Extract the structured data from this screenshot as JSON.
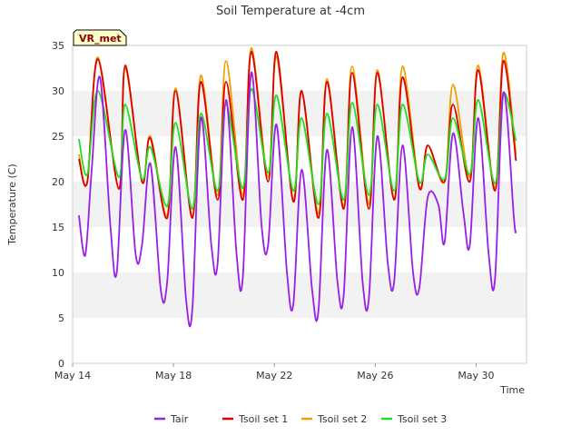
{
  "chart_data": {
    "type": "line",
    "title": "Soil Temperature at -4cm",
    "xlabel": "Time",
    "ylabel": "Temperature (C)",
    "badge": "VR_met",
    "ylim": [
      0,
      35
    ],
    "y_ticks": [
      0,
      5,
      10,
      15,
      20,
      25,
      30,
      35
    ],
    "xlim": [
      "2024-05-14",
      "2024-06-01"
    ],
    "x_ticks": [
      {
        "date": "2024-05-14",
        "label": "May 14"
      },
      {
        "date": "2024-05-18",
        "label": "May 18"
      },
      {
        "date": "2024-05-22",
        "label": "May 22"
      },
      {
        "date": "2024-05-26",
        "label": "May 26"
      },
      {
        "date": "2024-05-30",
        "label": "May 30"
      }
    ],
    "grid": "horizontal bands",
    "legend_position": "bottom",
    "colors": {
      "Tair": "#9a1ee8",
      "Tsoil set 1": "#dd0000",
      "Tsoil set 2": "#f0a000",
      "Tsoil set 3": "#22dd22",
      "band": "#f2f2f2",
      "badge_bg": "#ffffcc"
    },
    "series": [
      {
        "name": "Tair",
        "points": [
          [
            "2024-05-14 06:00",
            16.3
          ],
          [
            "2024-05-14 12:00",
            11.9
          ],
          [
            "2024-05-14 18:00",
            21.0
          ],
          [
            "2024-05-15 02:00",
            31.5
          ],
          [
            "2024-05-15 12:00",
            15.0
          ],
          [
            "2024-05-15 18:00",
            10.0
          ],
          [
            "2024-05-16 02:00",
            25.7
          ],
          [
            "2024-05-16 12:00",
            12.0
          ],
          [
            "2024-05-16 18:00",
            13.0
          ],
          [
            "2024-05-17 02:00",
            22.0
          ],
          [
            "2024-05-17 12:00",
            8.0
          ],
          [
            "2024-05-17 18:00",
            9.0
          ],
          [
            "2024-05-18 02:00",
            23.8
          ],
          [
            "2024-05-18 12:00",
            7.0
          ],
          [
            "2024-05-18 18:00",
            6.0
          ],
          [
            "2024-05-19 02:00",
            27.0
          ],
          [
            "2024-05-19 12:00",
            13.0
          ],
          [
            "2024-05-19 18:00",
            11.0
          ],
          [
            "2024-05-20 02:00",
            29.0
          ],
          [
            "2024-05-20 12:00",
            12.0
          ],
          [
            "2024-05-20 18:00",
            9.5
          ],
          [
            "2024-05-21 02:00",
            32.0
          ],
          [
            "2024-05-21 12:00",
            15.0
          ],
          [
            "2024-05-21 18:00",
            13.0
          ],
          [
            "2024-05-22 02:00",
            26.3
          ],
          [
            "2024-05-22 12:00",
            10.0
          ],
          [
            "2024-05-22 18:00",
            6.5
          ],
          [
            "2024-05-23 02:00",
            21.3
          ],
          [
            "2024-05-23 12:00",
            8.0
          ],
          [
            "2024-05-23 18:00",
            5.8
          ],
          [
            "2024-05-24 02:00",
            23.5
          ],
          [
            "2024-05-24 12:00",
            9.0
          ],
          [
            "2024-05-24 18:00",
            7.5
          ],
          [
            "2024-05-25 02:00",
            26.0
          ],
          [
            "2024-05-25 12:00",
            9.0
          ],
          [
            "2024-05-25 18:00",
            7.2
          ],
          [
            "2024-05-26 02:00",
            25.0
          ],
          [
            "2024-05-26 12:00",
            11.0
          ],
          [
            "2024-05-26 18:00",
            9.0
          ],
          [
            "2024-05-27 02:00",
            24.0
          ],
          [
            "2024-05-27 12:00",
            10.0
          ],
          [
            "2024-05-27 18:00",
            8.3
          ],
          [
            "2024-05-28 02:00",
            18.3
          ],
          [
            "2024-05-28 12:00",
            17.5
          ],
          [
            "2024-05-28 18:00",
            13.3
          ],
          [
            "2024-05-29 02:00",
            25.3
          ],
          [
            "2024-05-29 12:00",
            16.5
          ],
          [
            "2024-05-29 18:00",
            13.0
          ],
          [
            "2024-05-30 02:00",
            27.0
          ],
          [
            "2024-05-30 12:00",
            12.0
          ],
          [
            "2024-05-30 18:00",
            9.3
          ],
          [
            "2024-05-31 02:00",
            29.8
          ],
          [
            "2024-05-31 12:00",
            16.0
          ],
          [
            "2024-05-31 14:00",
            14.5
          ]
        ]
      },
      {
        "name": "Tsoil set 1",
        "points": [
          [
            "2024-05-14 06:00",
            22.5
          ],
          [
            "2024-05-14 14:00",
            20.0
          ],
          [
            "2024-05-15 00:00",
            33.5
          ],
          [
            "2024-05-15 20:00",
            19.2
          ],
          [
            "2024-05-16 02:00",
            32.8
          ],
          [
            "2024-05-16 18:00",
            20.0
          ],
          [
            "2024-05-17 02:00",
            24.8
          ],
          [
            "2024-05-17 18:00",
            16.0
          ],
          [
            "2024-05-18 02:00",
            30.0
          ],
          [
            "2024-05-18 18:00",
            16.0
          ],
          [
            "2024-05-19 02:00",
            31.0
          ],
          [
            "2024-05-19 18:00",
            18.0
          ],
          [
            "2024-05-20 02:00",
            31.0
          ],
          [
            "2024-05-20 18:00",
            18.0
          ],
          [
            "2024-05-21 02:00",
            34.3
          ],
          [
            "2024-05-21 18:00",
            20.0
          ],
          [
            "2024-05-22 02:00",
            34.3
          ],
          [
            "2024-05-22 18:00",
            17.8
          ],
          [
            "2024-05-23 02:00",
            30.0
          ],
          [
            "2024-05-23 18:00",
            16.0
          ],
          [
            "2024-05-24 02:00",
            31.0
          ],
          [
            "2024-05-24 18:00",
            17.0
          ],
          [
            "2024-05-25 02:00",
            32.0
          ],
          [
            "2024-05-25 18:00",
            17.0
          ],
          [
            "2024-05-26 02:00",
            32.0
          ],
          [
            "2024-05-26 18:00",
            18.0
          ],
          [
            "2024-05-27 02:00",
            31.5
          ],
          [
            "2024-05-27 18:00",
            19.3
          ],
          [
            "2024-05-28 02:00",
            24.0
          ],
          [
            "2024-05-28 18:00",
            20.0
          ],
          [
            "2024-05-29 02:00",
            28.5
          ],
          [
            "2024-05-29 18:00",
            20.0
          ],
          [
            "2024-05-30 02:00",
            32.3
          ],
          [
            "2024-05-30 18:00",
            19.0
          ],
          [
            "2024-05-31 02:00",
            33.3
          ],
          [
            "2024-05-31 14:00",
            22.3
          ]
        ]
      },
      {
        "name": "Tsoil set 2",
        "points": [
          [
            "2024-05-14 06:00",
            23.0
          ],
          [
            "2024-05-14 14:00",
            20.0
          ],
          [
            "2024-05-15 00:00",
            33.7
          ],
          [
            "2024-05-15 20:00",
            19.2
          ],
          [
            "2024-05-16 02:00",
            32.5
          ],
          [
            "2024-05-16 18:00",
            20.0
          ],
          [
            "2024-05-17 02:00",
            25.0
          ],
          [
            "2024-05-17 18:00",
            16.3
          ],
          [
            "2024-05-18 02:00",
            30.3
          ],
          [
            "2024-05-18 18:00",
            16.2
          ],
          [
            "2024-05-19 02:00",
            31.7
          ],
          [
            "2024-05-19 18:00",
            18.5
          ],
          [
            "2024-05-20 02:00",
            33.3
          ],
          [
            "2024-05-20 18:00",
            18.5
          ],
          [
            "2024-05-21 02:00",
            34.7
          ],
          [
            "2024-05-21 18:00",
            20.5
          ],
          [
            "2024-05-22 02:00",
            33.8
          ],
          [
            "2024-05-22 18:00",
            18.0
          ],
          [
            "2024-05-23 02:00",
            30.0
          ],
          [
            "2024-05-23 18:00",
            16.5
          ],
          [
            "2024-05-24 02:00",
            31.3
          ],
          [
            "2024-05-24 18:00",
            17.3
          ],
          [
            "2024-05-25 02:00",
            32.7
          ],
          [
            "2024-05-25 18:00",
            17.5
          ],
          [
            "2024-05-26 02:00",
            32.3
          ],
          [
            "2024-05-26 18:00",
            18.2
          ],
          [
            "2024-05-27 02:00",
            32.7
          ],
          [
            "2024-05-27 18:00",
            19.5
          ],
          [
            "2024-05-28 02:00",
            24.0
          ],
          [
            "2024-05-28 18:00",
            20.0
          ],
          [
            "2024-05-29 02:00",
            30.7
          ],
          [
            "2024-05-29 18:00",
            20.5
          ],
          [
            "2024-05-30 02:00",
            32.8
          ],
          [
            "2024-05-30 18:00",
            19.3
          ],
          [
            "2024-05-31 02:00",
            34.2
          ],
          [
            "2024-05-31 14:00",
            23.0
          ]
        ]
      },
      {
        "name": "Tsoil set 3",
        "points": [
          [
            "2024-05-14 06:00",
            24.7
          ],
          [
            "2024-05-14 14:00",
            20.8
          ],
          [
            "2024-05-15 00:00",
            30.0
          ],
          [
            "2024-05-15 20:00",
            20.5
          ],
          [
            "2024-05-16 02:00",
            28.5
          ],
          [
            "2024-05-16 18:00",
            20.3
          ],
          [
            "2024-05-17 02:00",
            23.8
          ],
          [
            "2024-05-17 18:00",
            17.3
          ],
          [
            "2024-05-18 02:00",
            26.5
          ],
          [
            "2024-05-18 18:00",
            17.0
          ],
          [
            "2024-05-19 02:00",
            27.5
          ],
          [
            "2024-05-19 18:00",
            19.0
          ],
          [
            "2024-05-20 02:00",
            28.5
          ],
          [
            "2024-05-20 18:00",
            19.3
          ],
          [
            "2024-05-21 02:00",
            30.2
          ],
          [
            "2024-05-21 18:00",
            21.0
          ],
          [
            "2024-05-22 02:00",
            29.5
          ],
          [
            "2024-05-22 18:00",
            19.0
          ],
          [
            "2024-05-23 02:00",
            27.0
          ],
          [
            "2024-05-23 18:00",
            17.5
          ],
          [
            "2024-05-24 02:00",
            27.5
          ],
          [
            "2024-05-24 18:00",
            18.0
          ],
          [
            "2024-05-25 02:00",
            28.7
          ],
          [
            "2024-05-25 18:00",
            18.5
          ],
          [
            "2024-05-26 02:00",
            28.5
          ],
          [
            "2024-05-26 18:00",
            19.0
          ],
          [
            "2024-05-27 02:00",
            28.5
          ],
          [
            "2024-05-27 18:00",
            20.0
          ],
          [
            "2024-05-28 02:00",
            23.0
          ],
          [
            "2024-05-28 18:00",
            20.3
          ],
          [
            "2024-05-29 02:00",
            27.0
          ],
          [
            "2024-05-29 18:00",
            20.8
          ],
          [
            "2024-05-30 02:00",
            29.0
          ],
          [
            "2024-05-30 18:00",
            19.8
          ],
          [
            "2024-05-31 02:00",
            29.7
          ],
          [
            "2024-05-31 14:00",
            24.5
          ]
        ]
      }
    ]
  }
}
